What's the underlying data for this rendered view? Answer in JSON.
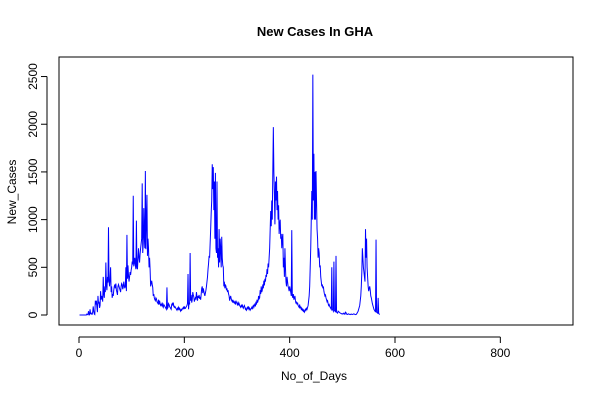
{
  "chart_data": {
    "type": "line",
    "title": "New Cases In GHA",
    "xlabel": "No_of_Days",
    "ylabel": "New_Cases",
    "xlim": [
      0,
      900
    ],
    "ylim": [
      0,
      2600
    ],
    "xticks": [
      0,
      200,
      400,
      600,
      800
    ],
    "yticks": [
      0,
      500,
      1000,
      1500,
      2000,
      2500
    ],
    "grid": false,
    "line_color": "#0000ff",
    "series": [
      {
        "x_start": 1,
        "x_step": 1,
        "values": [
          0,
          0,
          0,
          0,
          0,
          0,
          0,
          0,
          0,
          0,
          0,
          0,
          0,
          0,
          10,
          5,
          2,
          40,
          8,
          3,
          60,
          15,
          20,
          9,
          8,
          30,
          90,
          40,
          10,
          5,
          150,
          110,
          150,
          80,
          30,
          200,
          120,
          140,
          75,
          100,
          250,
          160,
          200,
          180,
          140,
          400,
          220,
          180,
          300,
          240,
          550,
          310,
          260,
          400,
          340,
          920,
          360,
          300,
          380,
          500,
          240,
          300,
          180,
          220,
          200,
          260,
          300,
          320,
          280,
          330,
          260,
          240,
          210,
          300,
          320,
          300,
          280,
          260,
          240,
          300,
          330,
          320,
          270,
          290,
          350,
          310,
          280,
          300,
          500,
          250,
          840,
          380,
          520,
          410,
          350,
          400,
          450,
          420,
          470,
          500,
          560,
          530,
          1250,
          510,
          550,
          600,
          520,
          480,
          990,
          500,
          480,
          600,
          700,
          600,
          550,
          640,
          700,
          750,
          800,
          1380,
          650,
          750,
          1120,
          820,
          700,
          1510,
          690,
          980,
          1260,
          620,
          800,
          700,
          500,
          600,
          480,
          300,
          330,
          360,
          320,
          290,
          200,
          220,
          180,
          160,
          150,
          180,
          170,
          140,
          130,
          120,
          160,
          110,
          150,
          120,
          100,
          110,
          100,
          130,
          90,
          80,
          110,
          100,
          90,
          80,
          70,
          60,
          290,
          70,
          80,
          120,
          110,
          90,
          80,
          70,
          60,
          110,
          120,
          100,
          130,
          90,
          80,
          90,
          80,
          70,
          60,
          50,
          70,
          60,
          80,
          60,
          70,
          50,
          40,
          60,
          50,
          60,
          70,
          80,
          60,
          90,
          70,
          70,
          80,
          90,
          100,
          120,
          430,
          60,
          130,
          110,
          650,
          150,
          210,
          130,
          160,
          240,
          210,
          190,
          140,
          160,
          180,
          170,
          240,
          190,
          150,
          200,
          180,
          210,
          170,
          190,
          160,
          220,
          280,
          300,
          230,
          280,
          250,
          220,
          200,
          230,
          260,
          300,
          350,
          400,
          480,
          540,
          620,
          600,
          750,
          900,
          1070,
          1200,
          1580,
          1320,
          1550,
          1100,
          1400,
          800,
          1490,
          700,
          650,
          1400,
          600,
          700,
          500,
          900,
          550,
          800,
          700,
          500,
          820,
          600,
          520,
          500,
          300,
          350,
          280,
          320,
          300,
          260,
          280,
          240,
          260,
          220,
          200,
          150,
          180,
          200,
          170,
          150,
          140,
          160,
          130,
          150,
          120,
          140,
          110,
          150,
          130,
          120,
          100,
          140,
          110,
          120,
          100,
          90,
          80,
          100,
          90,
          110,
          80,
          70,
          90,
          100,
          80,
          60,
          70,
          50,
          60,
          80,
          70,
          90,
          60,
          70,
          50,
          60,
          70,
          80,
          60,
          90,
          100,
          80,
          100,
          120,
          90,
          140,
          110,
          160,
          130,
          150,
          200,
          170,
          180,
          260,
          220,
          300,
          240,
          260,
          320,
          280,
          360,
          310,
          380,
          350,
          420,
          400,
          480,
          430,
          540,
          500,
          600,
          700,
          900,
          1090,
          930,
          1200,
          1000,
          1500,
          1970,
          1500,
          1260,
          950,
          1400,
          1200,
          1450,
          1100,
          1300,
          1000,
          1150,
          850,
          950,
          1000,
          800,
          850,
          700,
          800,
          850,
          500,
          600,
          400,
          700,
          500,
          350,
          300,
          400,
          350,
          300,
          280,
          250,
          300,
          270,
          240,
          200,
          890,
          200,
          180,
          220,
          160,
          180,
          200,
          150,
          120,
          140,
          110,
          130,
          100,
          90,
          80,
          110,
          70,
          90,
          60,
          70,
          50,
          60,
          40,
          50,
          30,
          40,
          60,
          50,
          70,
          60,
          80,
          100,
          150,
          200,
          300,
          500,
          700,
          1000,
          1300,
          1000,
          2520,
          1200,
          1690,
          1000,
          1500,
          1000,
          1510,
          1200,
          900,
          800,
          600,
          700,
          650,
          500,
          520,
          400,
          350,
          300,
          320,
          280,
          300,
          250,
          220,
          200,
          210,
          180,
          160,
          140,
          150,
          120,
          100,
          110,
          90,
          80,
          70,
          60,
          500,
          60,
          50,
          40,
          560,
          45,
          40,
          35,
          620,
          30,
          25,
          20,
          40,
          35,
          30,
          25,
          20,
          18,
          15,
          12,
          10,
          15,
          12,
          20,
          10,
          8,
          30,
          25,
          10,
          8,
          6,
          10,
          12,
          8,
          6,
          4,
          8,
          10,
          6,
          5,
          8,
          10,
          12,
          8,
          6,
          4,
          5,
          10,
          20,
          30,
          40,
          60,
          80,
          100,
          150,
          200,
          300,
          450,
          700,
          600,
          500,
          450,
          400,
          350,
          900,
          600,
          800,
          500,
          400,
          300,
          250,
          280,
          300,
          260,
          200,
          180,
          150,
          120,
          100,
          80,
          60,
          50,
          40,
          30,
          790,
          30,
          25,
          20,
          180,
          15,
          10,
          5
        ]
      }
    ]
  }
}
